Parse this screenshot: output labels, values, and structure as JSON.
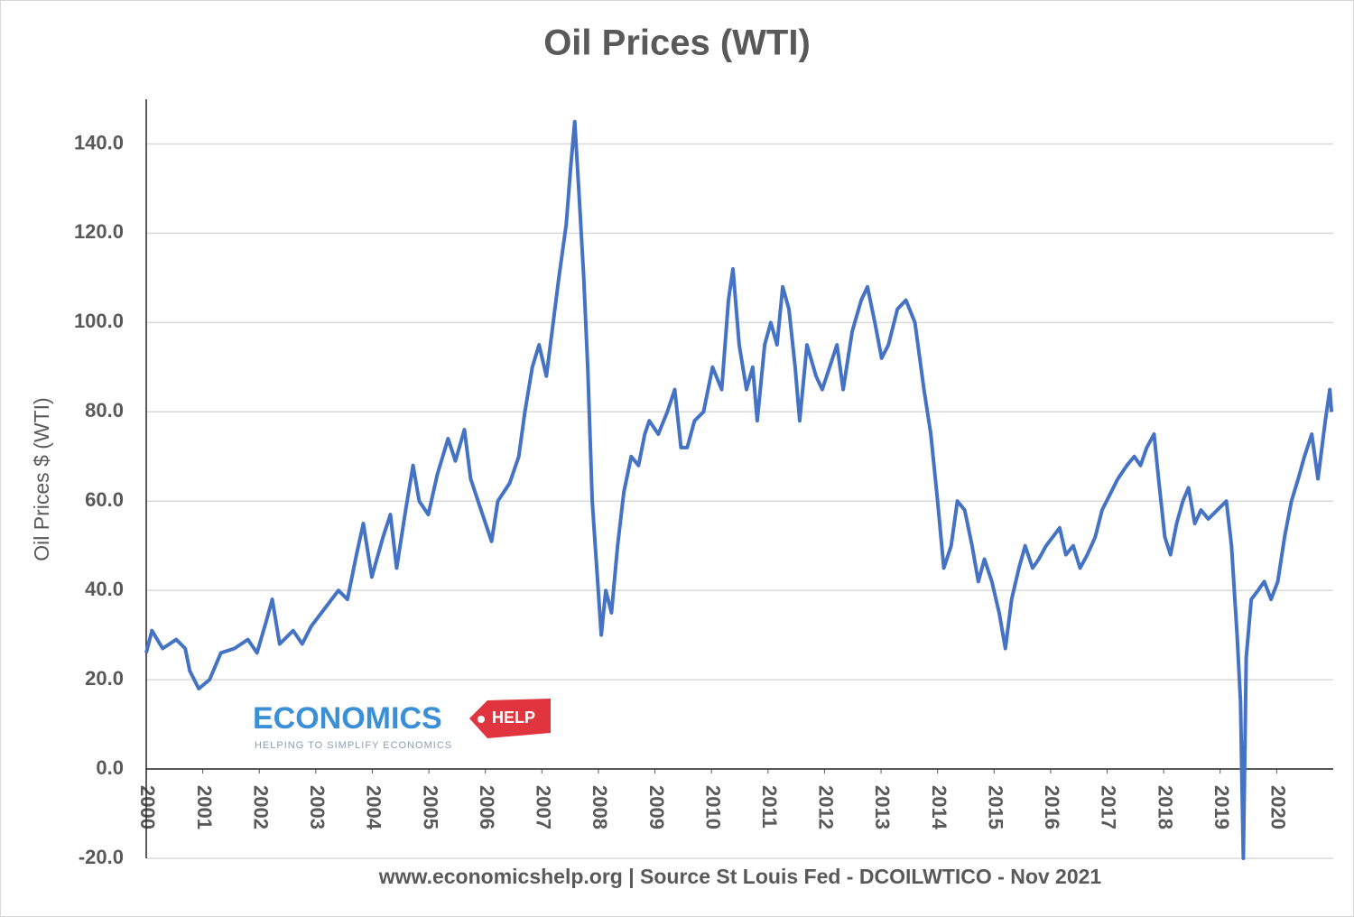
{
  "chart_data": {
    "type": "line",
    "title": "Oil Prices (WTI)",
    "y_label": "Oil Prices $ (WTI)",
    "footer": "www.economicshelp.org | Source St Louis Fed - DCOILWTICO  - Nov 2021",
    "logo": {
      "main": "ECONOMICS",
      "tag": "HELP",
      "slogan": "HELPING TO SIMPLIFY ECONOMICS"
    },
    "xlim": [
      2000,
      2021
    ],
    "xticks": [
      2000,
      2001,
      2002,
      2003,
      2004,
      2005,
      2006,
      2007,
      2008,
      2009,
      2010,
      2011,
      2012,
      2013,
      2014,
      2015,
      2016,
      2017,
      2018,
      2019,
      2020
    ],
    "ylim": [
      -20,
      150
    ],
    "yticks": [
      {
        "value": -20,
        "label": "-20.0"
      },
      {
        "value": 0,
        "label": "0.0"
      },
      {
        "value": 20,
        "label": "20.0"
      },
      {
        "value": 40,
        "label": "40.0"
      },
      {
        "value": 60,
        "label": "60.0"
      },
      {
        "value": 80,
        "label": "80.0"
      },
      {
        "value": 100,
        "label": "100.0"
      },
      {
        "value": 120,
        "label": "120.0"
      },
      {
        "value": 140,
        "label": "140.0"
      }
    ],
    "grid": true,
    "series": [
      {
        "name": "Oil Prices $ (WTI)",
        "color": "#4472c4",
        "x": [
          2000.0,
          2000.1,
          2000.29,
          2000.53,
          2000.69,
          2000.77,
          2000.93,
          2001.12,
          2001.32,
          2001.56,
          2001.8,
          2001.96,
          2002.12,
          2002.23,
          2002.36,
          2002.6,
          2002.76,
          2002.92,
          2003.16,
          2003.4,
          2003.56,
          2003.72,
          2003.84,
          2003.99,
          2004.19,
          2004.32,
          2004.43,
          2004.59,
          2004.72,
          2004.83,
          2004.99,
          2005.15,
          2005.34,
          2005.47,
          2005.63,
          2005.74,
          2005.95,
          2006.11,
          2006.22,
          2006.43,
          2006.59,
          2006.7,
          2006.83,
          2006.95,
          2007.08,
          2007.18,
          2007.3,
          2007.43,
          2007.51,
          2007.58,
          2007.66,
          2007.74,
          2007.81,
          2007.89,
          2007.97,
          2008.05,
          2008.13,
          2008.23,
          2008.34,
          2008.45,
          2008.58,
          2008.71,
          2008.82,
          2008.9,
          2009.06,
          2009.22,
          2009.35,
          2009.46,
          2009.57,
          2009.7,
          2009.86,
          2010.02,
          2010.18,
          2010.3,
          2010.38,
          2010.49,
          2010.62,
          2010.73,
          2010.81,
          2010.94,
          2011.05,
          2011.16,
          2011.26,
          2011.37,
          2011.48,
          2011.56,
          2011.69,
          2011.85,
          2011.96,
          2012.09,
          2012.22,
          2012.33,
          2012.49,
          2012.65,
          2012.76,
          2012.89,
          2013.01,
          2013.13,
          2013.29,
          2013.44,
          2013.6,
          2013.76,
          2013.88,
          2014.0,
          2014.11,
          2014.24,
          2014.35,
          2014.48,
          2014.61,
          2014.72,
          2014.83,
          2014.96,
          2015.09,
          2015.2,
          2015.31,
          2015.44,
          2015.55,
          2015.68,
          2015.79,
          2015.92,
          2016.04,
          2016.16,
          2016.27,
          2016.4,
          2016.52,
          2016.65,
          2016.79,
          2016.91,
          2017.07,
          2017.19,
          2017.35,
          2017.48,
          2017.59,
          2017.7,
          2017.83,
          2017.91,
          2018.02,
          2018.12,
          2018.23,
          2018.34,
          2018.44,
          2018.55,
          2018.66,
          2018.79,
          2018.95,
          2019.11,
          2019.2,
          2019.3,
          2019.36,
          2019.41,
          2019.46,
          2019.55,
          2019.67,
          2019.78,
          2019.9,
          2020.02,
          2020.14,
          2020.26,
          2020.38,
          2020.49,
          2020.62,
          2020.73,
          2020.86,
          2020.94,
          2020.97
        ],
        "values": [
          26,
          31,
          27,
          29,
          27,
          22,
          18,
          20,
          26,
          27,
          29,
          26,
          33,
          38,
          28,
          31,
          28,
          32,
          36,
          40,
          38,
          48,
          55,
          43,
          52,
          57,
          45,
          58,
          68,
          60,
          57,
          66,
          74,
          69,
          76,
          65,
          57,
          51,
          60,
          64,
          70,
          80,
          90,
          95,
          88,
          98,
          110,
          122,
          135,
          145,
          128,
          110,
          90,
          60,
          45,
          30,
          40,
          35,
          50,
          62,
          70,
          68,
          75,
          78,
          75,
          80,
          85,
          72,
          72,
          78,
          80,
          90,
          85,
          105,
          112,
          95,
          85,
          90,
          78,
          95,
          100,
          95,
          108,
          103,
          90,
          78,
          95,
          88,
          85,
          90,
          95,
          85,
          98,
          105,
          108,
          100,
          92,
          95,
          103,
          105,
          100,
          85,
          75,
          60,
          45,
          50,
          60,
          58,
          50,
          42,
          47,
          42,
          35,
          27,
          38,
          45,
          50,
          45,
          47,
          50,
          52,
          54,
          48,
          50,
          45,
          48,
          52,
          58,
          62,
          65,
          68,
          70,
          68,
          72,
          75,
          65,
          52,
          48,
          55,
          60,
          63,
          55,
          58,
          56,
          58,
          60,
          50,
          30,
          15,
          -20,
          25,
          38,
          40,
          42,
          38,
          42,
          52,
          60,
          65,
          70,
          75,
          65,
          78,
          85,
          80
        ]
      }
    ]
  }
}
